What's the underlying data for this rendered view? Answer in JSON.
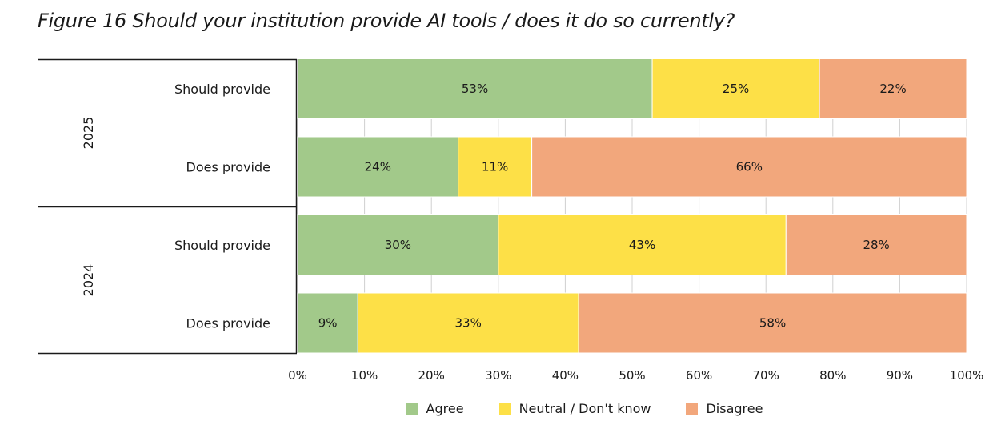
{
  "title": "Figure 16 Should your institution provide AI tools / does it do so currently?",
  "colors": {
    "Agree": "#a2c98a",
    "Neutral / Don't know": "#fde047",
    "Disagree": "#f2a77c"
  },
  "chart_data": {
    "type": "bar",
    "orientation": "horizontal",
    "stacked": true,
    "groups": [
      {
        "label": "2025",
        "categories": [
          "Should provide",
          "Does provide"
        ]
      },
      {
        "label": "2024",
        "categories": [
          "Should provide",
          "Does provide"
        ]
      }
    ],
    "categories": [
      "2025 Should provide",
      "2025 Does provide",
      "2024 Should provide",
      "2024 Does provide"
    ],
    "category_labels": [
      "Should provide",
      "Does provide",
      "Should provide",
      "Does provide"
    ],
    "series": [
      {
        "name": "Agree",
        "values": [
          53,
          24,
          30,
          9
        ],
        "labels": [
          "53%",
          "24%",
          "30%",
          "9%"
        ]
      },
      {
        "name": "Neutral / Don't know",
        "values": [
          25,
          11,
          43,
          33
        ],
        "labels": [
          "25%",
          "11%",
          "43%",
          "33%"
        ]
      },
      {
        "name": "Disagree",
        "values": [
          22,
          66,
          28,
          58
        ],
        "labels": [
          "22%",
          "66%",
          "28%",
          "58%"
        ]
      }
    ],
    "xlim": [
      0,
      100
    ],
    "xticks": [
      "0%",
      "10%",
      "20%",
      "30%",
      "40%",
      "50%",
      "60%",
      "70%",
      "80%",
      "90%",
      "100%"
    ],
    "grid": true,
    "legend_position": "bottom"
  }
}
